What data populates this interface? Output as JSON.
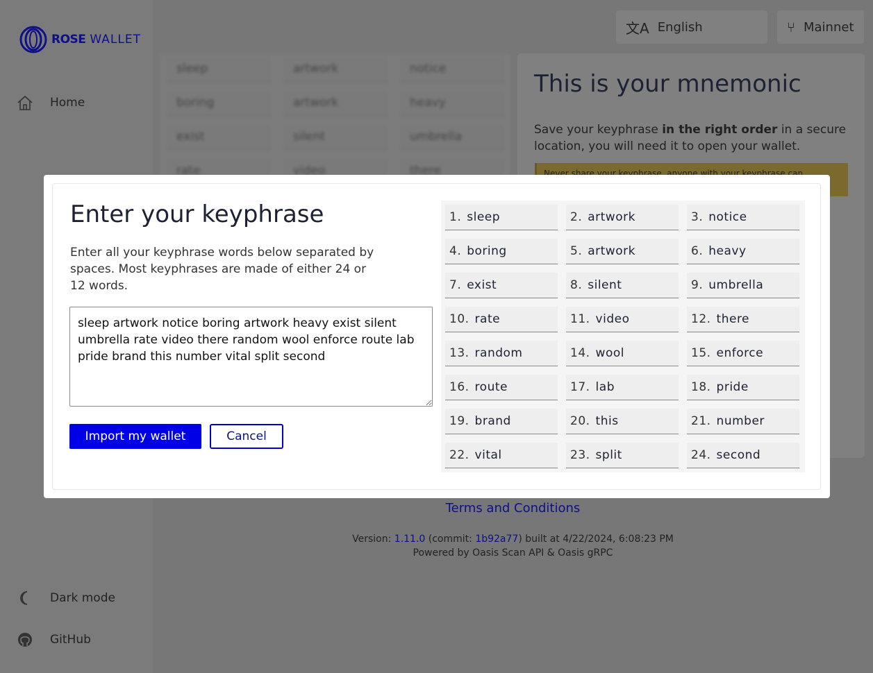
{
  "sidebar": {
    "logo": {
      "bold": "ROSE",
      "rest": "WALLET"
    },
    "items": [
      {
        "label": "Home",
        "icon": "home-icon"
      },
      {
        "label": "Dark mode",
        "icon": "moon-icon"
      },
      {
        "label": "GitHub",
        "icon": "github-icon"
      }
    ]
  },
  "header": {
    "language": "English",
    "network": "Mainnet"
  },
  "background_card": {
    "title": "This is your mnemonic",
    "desc_pre": "Save your keyphrase ",
    "desc_bold": "in the right order",
    "desc_post": " in a secure location, you will need it to open your wallet.",
    "warning": "Never share your keyphrase, anyone with your keyphrase can"
  },
  "footer": {
    "terms": "Terms and Conditions",
    "version_label": "Version: ",
    "version": "1.11.0",
    "commit_label": " (commit: ",
    "commit": "1b92a77",
    "built": ") built at 4/22/2024, 6:08:23 PM",
    "powered": "Powered by Oasis Scan API & Oasis gRPC"
  },
  "modal": {
    "title": "Enter your keyphrase",
    "description": "Enter all your keyphrase words below separated by spaces. Most keyphrases are made of either 24 or 12 words.",
    "textarea_value": "sleep artwork notice boring artwork heavy exist silent umbrella rate video there random wool enforce route lab pride brand this number vital split second",
    "import_label": "Import my wallet",
    "cancel_label": "Cancel",
    "words": [
      "sleep",
      "artwork",
      "notice",
      "boring",
      "artwork",
      "heavy",
      "exist",
      "silent",
      "umbrella",
      "rate",
      "video",
      "there",
      "random",
      "wool",
      "enforce",
      "route",
      "lab",
      "pride",
      "brand",
      "this",
      "number",
      "vital",
      "split",
      "second"
    ]
  },
  "colors": {
    "accent": "#0000e6",
    "brand": "#0f0f8a",
    "overlay": "#777777",
    "warning": "#7a6a2e"
  }
}
